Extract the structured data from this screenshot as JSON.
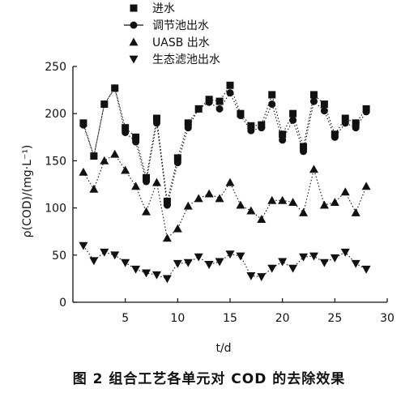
{
  "caption": "图 2   组合工艺各单元对 COD 的去除效果",
  "chart_data": {
    "type": "scatter",
    "title": "",
    "xlabel": "t/d",
    "ylabel": "ρ(COD)/(mg·L⁻¹)",
    "xlim": [
      0,
      30
    ],
    "ylim": [
      0,
      250
    ],
    "xticks": [
      5,
      10,
      15,
      20,
      25,
      30
    ],
    "yticks": [
      0,
      50,
      100,
      150,
      200,
      250
    ],
    "grid": false,
    "legend_position": "top-left",
    "x": [
      1,
      2,
      3,
      4,
      5,
      6,
      7,
      8,
      9,
      10,
      11,
      12,
      13,
      14,
      15,
      16,
      17,
      18,
      19,
      20,
      21,
      22,
      23,
      24,
      25,
      26,
      27,
      28
    ],
    "series": [
      {
        "name": "进水",
        "marker": "square",
        "values": [
          190,
          155,
          210,
          227,
          185,
          175,
          132,
          195,
          107,
          153,
          190,
          205,
          215,
          213,
          230,
          200,
          187,
          188,
          220,
          178,
          200,
          165,
          220,
          210,
          178,
          195,
          190,
          205
        ]
      },
      {
        "name": "调节池出水",
        "marker": "circle",
        "values": [
          188,
          155,
          210,
          227,
          180,
          170,
          128,
          190,
          103,
          148,
          185,
          205,
          212,
          205,
          222,
          198,
          182,
          185,
          210,
          172,
          193,
          160,
          213,
          203,
          175,
          190,
          185,
          202
        ]
      },
      {
        "name": "UASB 出水",
        "marker": "triangle-up",
        "values": [
          138,
          120,
          150,
          157,
          140,
          123,
          96,
          127,
          68,
          78,
          102,
          110,
          115,
          110,
          127,
          103,
          97,
          88,
          108,
          108,
          106,
          95,
          141,
          103,
          106,
          117,
          95,
          123
        ]
      },
      {
        "name": "生态滤池出水",
        "marker": "triangle-down",
        "values": [
          60,
          44,
          53,
          50,
          42,
          35,
          31,
          29,
          25,
          41,
          42,
          48,
          40,
          43,
          51,
          49,
          28,
          27,
          36,
          43,
          36,
          48,
          49,
          42,
          47,
          53,
          41,
          35
        ]
      }
    ]
  }
}
